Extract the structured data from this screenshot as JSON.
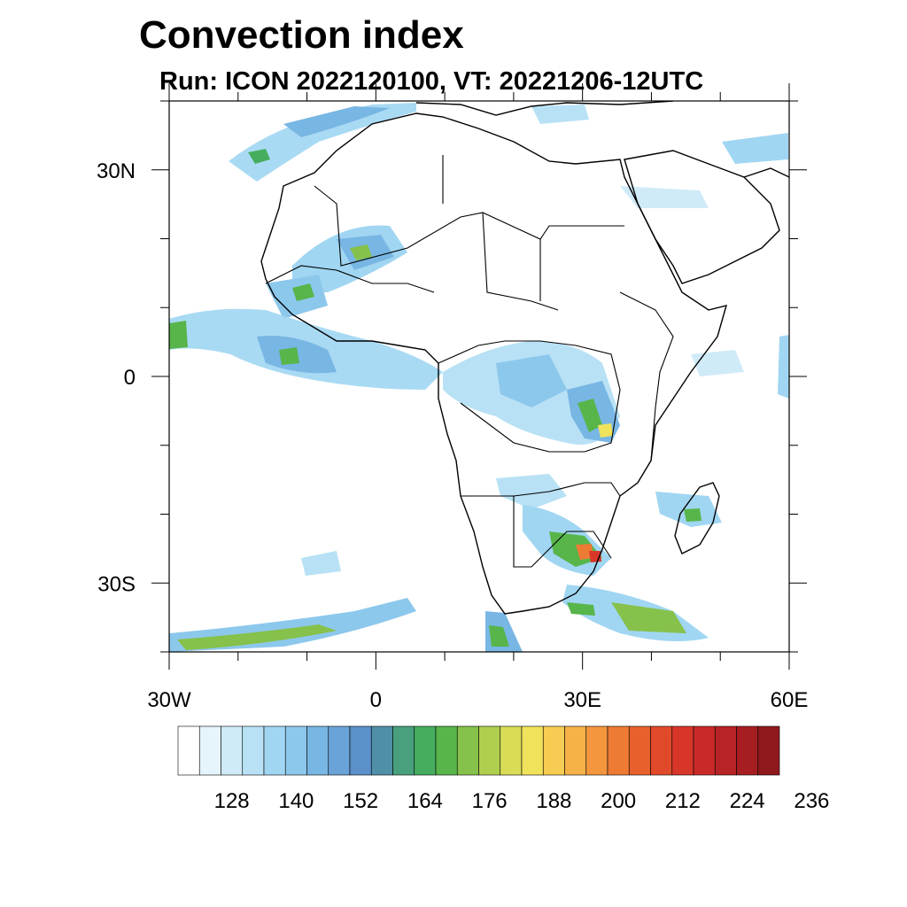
{
  "title": "Convection index",
  "subtitle": "Run: ICON 2022120100,  VT: 20221206-12UTC",
  "map": {
    "region": "Africa",
    "lon_range": [
      -30,
      60
    ],
    "lat_range": [
      -40,
      40
    ],
    "lat_labels": [
      "30N",
      "0",
      "30S"
    ],
    "lon_labels": [
      "30W",
      "0",
      "30E",
      "60E"
    ]
  },
  "colorbar": {
    "labels": [
      "128",
      "140",
      "152",
      "164",
      "176",
      "188",
      "200",
      "212",
      "224",
      "236"
    ],
    "colors": [
      "#ffffff",
      "#e6f4fb",
      "#d0ebf8",
      "#b8e1f5",
      "#a0d6f2",
      "#8cc8ec",
      "#78b6e4",
      "#6aa3d8",
      "#5b90c9",
      "#4f8fa8",
      "#48a07c",
      "#46ad5e",
      "#57b54a",
      "#86c14b",
      "#b1cf4f",
      "#d9dc55",
      "#f0e35b",
      "#f6cc52",
      "#f6b148",
      "#f4963e",
      "#ee7b34",
      "#e8612d",
      "#e04a2a",
      "#d83629",
      "#c92a28",
      "#b82326",
      "#a61e22",
      "#8f181d"
    ]
  },
  "chart_data": {
    "type": "heatmap",
    "title": "Convection index",
    "subtitle": "Run: ICON 2022120100,  VT: 20221206-12UTC",
    "x_range": [
      -30,
      60
    ],
    "y_range": [
      -40,
      40
    ],
    "x_ticks": [
      -30,
      0,
      30,
      60
    ],
    "x_tick_labels": [
      "30W",
      "0",
      "30E",
      "60E"
    ],
    "y_ticks": [
      30,
      0,
      -30
    ],
    "y_tick_labels": [
      "30N",
      "0",
      "30S"
    ],
    "levels": [
      128,
      140,
      152,
      164,
      176,
      188,
      200,
      212,
      224,
      236
    ]
  }
}
